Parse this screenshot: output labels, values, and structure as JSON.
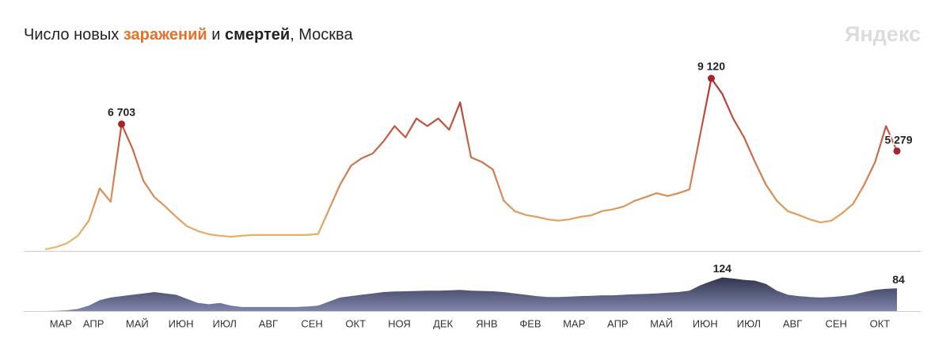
{
  "title_parts": [
    {
      "text": "Число новых ",
      "color": "#222222",
      "bold": false
    },
    {
      "text": "заражений",
      "color": "#e8702a",
      "bold": true
    },
    {
      "text": " и ",
      "color": "#222222",
      "bold": false
    },
    {
      "text": "смертей",
      "color": "#222222",
      "bold": true
    },
    {
      "text": ", Москва",
      "color": "#222222",
      "bold": false
    }
  ],
  "logo": "Яндекс",
  "chart_data": [
    {
      "type": "line",
      "colors": [
        "#ebbb6c",
        "#a8232a"
      ],
      "ylim": [
        0,
        10000
      ],
      "values": [
        80,
        200,
        400,
        800,
        1600,
        3300,
        2600,
        6703,
        5400,
        3700,
        2850,
        2350,
        1800,
        1300,
        1050,
        880,
        800,
        750,
        800,
        840,
        840,
        840,
        840,
        840,
        840,
        900,
        2200,
        3500,
        4500,
        4900,
        5150,
        5800,
        6600,
        6000,
        7000,
        6600,
        7000,
        6400,
        7850,
        4950,
        4700,
        4300,
        2650,
        2100,
        1900,
        1800,
        1670,
        1600,
        1670,
        1800,
        1880,
        2100,
        2200,
        2350,
        2650,
        2850,
        3050,
        2900,
        3050,
        3250,
        6200,
        9120,
        8300,
        7000,
        6000,
        4700,
        3500,
        2650,
        2100,
        1900,
        1670,
        1500,
        1600,
        2000,
        2500,
        3500,
        4700,
        6600,
        5279
      ],
      "value_labels": [
        null,
        null,
        null,
        null,
        null,
        null,
        null,
        "6 703",
        null,
        null,
        null,
        null,
        null,
        null,
        null,
        null,
        null,
        null,
        null,
        null,
        null,
        null,
        null,
        null,
        null,
        null,
        null,
        null,
        null,
        null,
        null,
        null,
        null,
        null,
        null,
        null,
        null,
        null,
        null,
        null,
        null,
        null,
        null,
        null,
        null,
        null,
        null,
        null,
        null,
        null,
        null,
        null,
        null,
        null,
        null,
        null,
        null,
        null,
        null,
        null,
        null,
        "9 120",
        null,
        null,
        null,
        null,
        null,
        null,
        null,
        null,
        null,
        null,
        null,
        null,
        null,
        null,
        null,
        null,
        "5 279"
      ]
    },
    {
      "type": "area",
      "colors": [
        "#8086ab",
        "#272a44"
      ],
      "ylim": [
        0,
        140
      ],
      "categories": [
        null,
        "МАР",
        null,
        null,
        "АПР",
        null,
        null,
        null,
        "МАЙ",
        null,
        null,
        null,
        "ИЮН",
        null,
        null,
        null,
        "ИЮЛ",
        null,
        null,
        null,
        "АВГ",
        null,
        null,
        null,
        "СЕН",
        null,
        null,
        null,
        "ОКТ",
        null,
        null,
        null,
        "НОЯ",
        null,
        null,
        null,
        "ДЕК",
        null,
        null,
        null,
        "ЯНВ",
        null,
        null,
        null,
        "ФЕВ",
        null,
        null,
        null,
        "МАР",
        null,
        null,
        null,
        "АПР",
        null,
        null,
        null,
        "МАЙ",
        null,
        null,
        null,
        "ИЮН",
        null,
        null,
        null,
        "ИЮЛ",
        null,
        null,
        null,
        "АВГ",
        null,
        null,
        null,
        "СЕН",
        null,
        null,
        null,
        "ОКТ",
        null,
        null
      ],
      "values": [
        0,
        1,
        3,
        8,
        20,
        40,
        50,
        55,
        60,
        65,
        70,
        65,
        60,
        45,
        30,
        25,
        30,
        20,
        15,
        15,
        15,
        15,
        15,
        15,
        17,
        20,
        35,
        50,
        55,
        60,
        65,
        70,
        72,
        73,
        74,
        75,
        75,
        76,
        78,
        75,
        74,
        73,
        70,
        65,
        60,
        55,
        52,
        52,
        53,
        55,
        56,
        58,
        58,
        60,
        62,
        63,
        65,
        68,
        70,
        75,
        95,
        110,
        124,
        120,
        115,
        112,
        100,
        75,
        60,
        55,
        52,
        50,
        52,
        55,
        60,
        70,
        78,
        82,
        84
      ],
      "value_labels": [
        null,
        null,
        null,
        null,
        null,
        null,
        null,
        null,
        null,
        null,
        null,
        null,
        null,
        null,
        null,
        null,
        null,
        null,
        null,
        null,
        null,
        null,
        null,
        null,
        null,
        null,
        null,
        null,
        null,
        null,
        null,
        null,
        null,
        null,
        null,
        null,
        null,
        null,
        null,
        null,
        null,
        null,
        null,
        null,
        null,
        null,
        null,
        null,
        null,
        null,
        null,
        null,
        null,
        null,
        null,
        null,
        null,
        null,
        null,
        null,
        null,
        null,
        "124",
        null,
        null,
        null,
        null,
        null,
        null,
        null,
        null,
        null,
        null,
        null,
        null,
        null,
        null,
        null,
        "84"
      ]
    }
  ]
}
